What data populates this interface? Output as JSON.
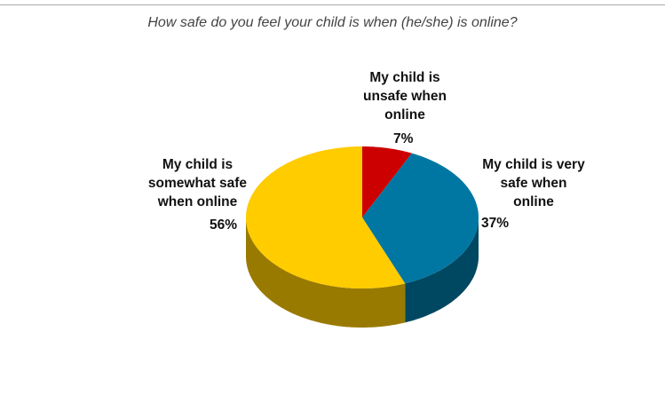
{
  "chart_data": {
    "type": "pie3d",
    "title": "How safe do you feel your child is when (he/she) is online?",
    "categories": [
      "My child is unsafe when online",
      "My child is very safe when online",
      "My child is somewhat safe when online"
    ],
    "values": [
      7,
      37,
      56
    ],
    "value_labels": [
      "7%",
      "37%",
      "56%"
    ],
    "colors": [
      "#cc0000",
      "#0077a2",
      "#ffcc00"
    ]
  }
}
